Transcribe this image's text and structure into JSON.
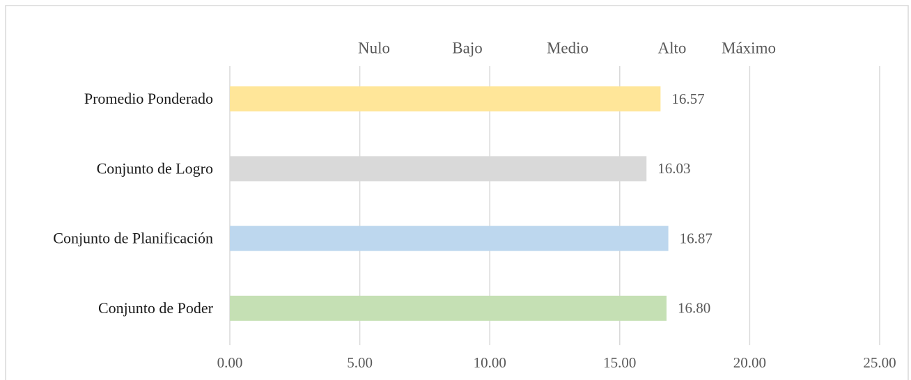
{
  "chart_data": {
    "type": "barh",
    "categories": [
      "Promedio Ponderado",
      "Conjunto de Logro",
      "Conjunto de Planificación",
      "Conjunto de Poder"
    ],
    "values": [
      16.57,
      16.03,
      16.87,
      16.8
    ],
    "value_labels": [
      "16.57",
      "16.03",
      "16.87",
      "16.80"
    ],
    "colors": [
      "#ffe699",
      "#d9d9d9",
      "#bdd7ee",
      "#c5e0b4"
    ],
    "xlim": [
      0,
      25
    ],
    "xticks": [
      {
        "value": 0,
        "label": "0.00"
      },
      {
        "value": 5,
        "label": "5.00"
      },
      {
        "value": 10,
        "label": "10.00"
      },
      {
        "value": 15,
        "label": "15.00"
      },
      {
        "value": 20,
        "label": "20.00"
      },
      {
        "value": 25,
        "label": "25.00"
      }
    ],
    "grid": true,
    "annotations": [
      "Nulo",
      "Bajo",
      "Medio",
      "Alto",
      "Máximo"
    ]
  }
}
